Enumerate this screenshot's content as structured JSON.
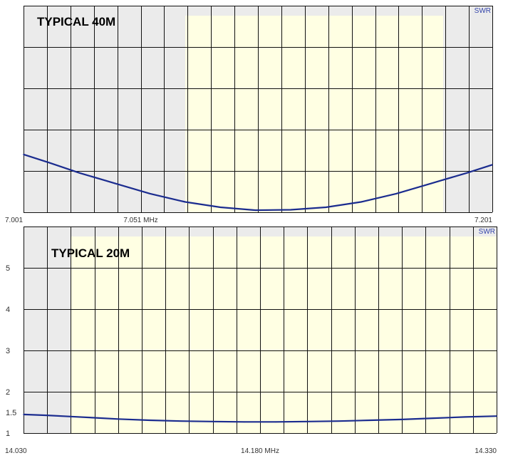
{
  "colors": {
    "plot_background": "#ebebeb",
    "band_highlight": "#ffffe3",
    "grid": "#111111",
    "trace": "#1b2c8f"
  },
  "chart_data": [
    {
      "type": "line",
      "title": "TYPICAL 40M",
      "corner_label": "SWR",
      "x_tick_labels": [
        {
          "x": 7.001,
          "label": "7.001"
        },
        {
          "x": 7.051,
          "label": "7.051 MHz"
        },
        {
          "x": 7.201,
          "label": "7.201"
        }
      ],
      "x_range": [
        7.001,
        7.201
      ],
      "y_range": [
        1.0,
        6.0
      ],
      "y_tick_labels": [],
      "grid": true,
      "band_highlight_x": [
        7.07,
        7.18
      ],
      "series": [
        {
          "x": [
            7.001,
            7.012,
            7.025,
            7.04,
            7.055,
            7.07,
            7.085,
            7.1,
            7.115,
            7.13,
            7.145,
            7.16,
            7.175,
            7.19,
            7.201
          ],
          "values": [
            2.4,
            2.2,
            1.95,
            1.7,
            1.45,
            1.25,
            1.12,
            1.05,
            1.06,
            1.12,
            1.25,
            1.45,
            1.7,
            1.95,
            2.15
          ]
        }
      ]
    },
    {
      "type": "line",
      "title": "TYPICAL 20M",
      "corner_label": "SWR",
      "x_tick_labels": [
        {
          "x": 14.03,
          "label": "14.030"
        },
        {
          "x": 14.18,
          "label": "14.180 MHz"
        },
        {
          "x": 14.33,
          "label": "14.330"
        }
      ],
      "x_range": [
        14.03,
        14.33
      ],
      "y_range": [
        1.0,
        6.0
      ],
      "y_tick_labels": [
        {
          "y": 1,
          "label": "1"
        },
        {
          "y": 1.5,
          "label": "1.5"
        },
        {
          "y": 2,
          "label": "2"
        },
        {
          "y": 3,
          "label": "3"
        },
        {
          "y": 4,
          "label": "4"
        },
        {
          "y": 5,
          "label": "5"
        }
      ],
      "grid": true,
      "band_highlight_x": [
        14.06,
        14.33
      ],
      "series": [
        {
          "x": [
            14.03,
            14.045,
            14.06,
            14.075,
            14.09,
            14.11,
            14.13,
            14.15,
            14.17,
            14.19,
            14.21,
            14.23,
            14.25,
            14.27,
            14.29,
            14.31,
            14.33
          ],
          "values": [
            1.45,
            1.43,
            1.4,
            1.37,
            1.34,
            1.31,
            1.29,
            1.28,
            1.27,
            1.27,
            1.28,
            1.29,
            1.31,
            1.33,
            1.36,
            1.39,
            1.41
          ]
        }
      ]
    }
  ]
}
